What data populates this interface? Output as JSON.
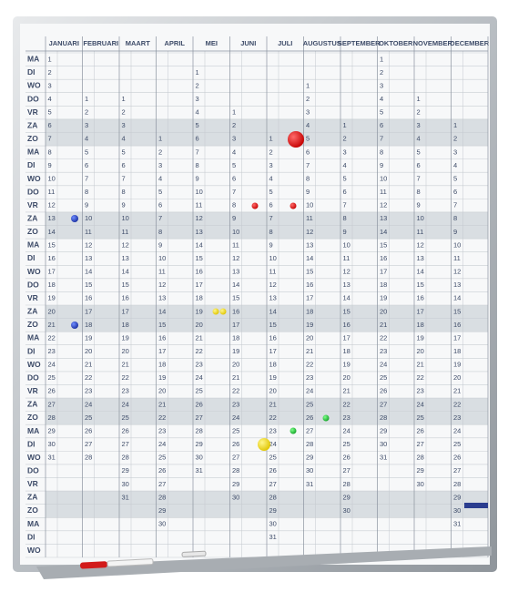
{
  "weekdays": [
    "MA",
    "DI",
    "WO",
    "DO",
    "VR",
    "ZA",
    "ZO",
    "MA",
    "DI",
    "WO",
    "DO",
    "VR",
    "ZA",
    "ZO",
    "MA",
    "DI",
    "WO",
    "DO",
    "VR",
    "ZA",
    "ZO",
    "MA",
    "DI",
    "WO",
    "DO",
    "VR",
    "ZA",
    "ZO",
    "MA",
    "DI",
    "WO",
    "DO",
    "VR",
    "ZA",
    "ZO",
    "MA",
    "DI",
    "WO"
  ],
  "months": [
    {
      "name": "JANUARI",
      "cells": [
        1,
        2,
        3,
        4,
        5,
        6,
        7,
        8,
        9,
        10,
        11,
        12,
        13,
        14,
        15,
        16,
        17,
        18,
        19,
        20,
        21,
        22,
        23,
        24,
        25,
        26,
        27,
        28,
        29,
        30,
        31,
        null,
        null,
        null,
        null,
        null,
        null,
        null
      ]
    },
    {
      "name": "FEBRUARI",
      "cells": [
        null,
        null,
        null,
        1,
        2,
        3,
        4,
        5,
        6,
        7,
        8,
        9,
        10,
        11,
        12,
        13,
        14,
        15,
        16,
        17,
        18,
        19,
        20,
        21,
        22,
        23,
        24,
        25,
        26,
        27,
        28,
        null,
        null,
        null,
        null,
        null,
        null,
        null
      ]
    },
    {
      "name": "MAART",
      "cells": [
        null,
        null,
        null,
        1,
        2,
        3,
        4,
        5,
        6,
        7,
        8,
        9,
        10,
        11,
        12,
        13,
        14,
        15,
        16,
        17,
        18,
        19,
        20,
        21,
        22,
        23,
        24,
        25,
        26,
        27,
        28,
        29,
        30,
        31,
        null,
        null,
        null,
        null
      ]
    },
    {
      "name": "APRIL",
      "cells": [
        null,
        null,
        null,
        null,
        null,
        null,
        1,
        2,
        3,
        4,
        5,
        6,
        7,
        8,
        9,
        10,
        11,
        12,
        13,
        14,
        15,
        16,
        17,
        18,
        19,
        20,
        21,
        22,
        23,
        24,
        25,
        26,
        27,
        28,
        29,
        30,
        null,
        null
      ]
    },
    {
      "name": "MEI",
      "cells": [
        null,
        1,
        2,
        3,
        4,
        5,
        6,
        7,
        8,
        9,
        10,
        11,
        12,
        13,
        14,
        15,
        16,
        17,
        18,
        19,
        20,
        21,
        22,
        23,
        24,
        25,
        26,
        27,
        28,
        29,
        30,
        31,
        null,
        null,
        null,
        null,
        null,
        null
      ]
    },
    {
      "name": "JUNI",
      "cells": [
        null,
        null,
        null,
        null,
        1,
        2,
        3,
        4,
        5,
        6,
        7,
        8,
        9,
        10,
        11,
        12,
        13,
        14,
        15,
        16,
        17,
        18,
        19,
        20,
        21,
        22,
        23,
        24,
        25,
        26,
        27,
        28,
        29,
        30,
        null,
        null,
        null,
        null
      ]
    },
    {
      "name": "JULI",
      "cells": [
        null,
        null,
        null,
        null,
        null,
        null,
        1,
        2,
        3,
        4,
        5,
        6,
        7,
        8,
        9,
        10,
        11,
        12,
        13,
        14,
        15,
        16,
        17,
        18,
        19,
        20,
        21,
        22,
        23,
        24,
        25,
        26,
        27,
        28,
        29,
        30,
        31,
        null
      ]
    },
    {
      "name": "AUGUSTUS",
      "cells": [
        null,
        null,
        1,
        2,
        3,
        4,
        5,
        6,
        7,
        8,
        9,
        10,
        11,
        12,
        13,
        14,
        15,
        16,
        17,
        18,
        19,
        20,
        21,
        22,
        23,
        24,
        25,
        26,
        27,
        28,
        29,
        30,
        31,
        null,
        null,
        null,
        null,
        null
      ]
    },
    {
      "name": "SEPTEMBER",
      "cells": [
        null,
        null,
        null,
        null,
        null,
        1,
        2,
        3,
        4,
        5,
        6,
        7,
        8,
        9,
        10,
        11,
        12,
        13,
        14,
        15,
        16,
        17,
        18,
        19,
        20,
        21,
        22,
        23,
        24,
        25,
        26,
        27,
        28,
        29,
        30,
        null,
        null,
        null
      ]
    },
    {
      "name": "OKTOBER",
      "cells": [
        1,
        2,
        3,
        4,
        5,
        6,
        7,
        8,
        9,
        10,
        11,
        12,
        13,
        14,
        15,
        16,
        17,
        18,
        19,
        20,
        21,
        22,
        23,
        24,
        25,
        26,
        27,
        28,
        29,
        30,
        31,
        null,
        null,
        null,
        null,
        null,
        null,
        null
      ]
    },
    {
      "name": "NOVEMBER",
      "cells": [
        null,
        null,
        null,
        1,
        2,
        3,
        4,
        5,
        6,
        7,
        8,
        9,
        10,
        11,
        12,
        13,
        14,
        15,
        16,
        17,
        18,
        19,
        20,
        21,
        22,
        23,
        24,
        25,
        26,
        27,
        28,
        29,
        30,
        null,
        null,
        null,
        null,
        null
      ]
    },
    {
      "name": "DECEMBER",
      "cells": [
        null,
        null,
        null,
        null,
        null,
        1,
        2,
        3,
        4,
        5,
        6,
        7,
        8,
        9,
        10,
        11,
        12,
        13,
        14,
        15,
        16,
        17,
        18,
        19,
        20,
        21,
        22,
        23,
        24,
        25,
        26,
        27,
        28,
        29,
        30,
        31,
        null,
        null
      ]
    }
  ]
}
